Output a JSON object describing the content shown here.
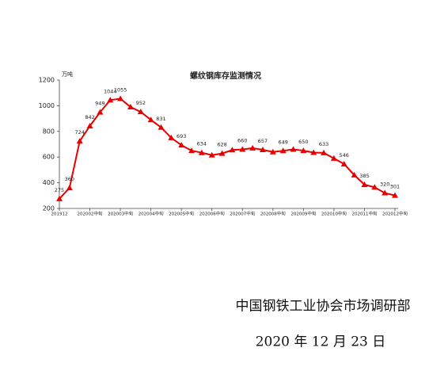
{
  "chart_data": {
    "type": "line",
    "title": "螺纹钢库存监测情况",
    "y_label": "万吨",
    "categories": [
      "201912",
      null,
      null,
      "202002中旬",
      null,
      null,
      "202003中旬",
      null,
      null,
      "202004中旬",
      null,
      null,
      "202005中旬",
      null,
      null,
      "202006中旬",
      null,
      null,
      "202007中旬",
      null,
      null,
      "202008中旬",
      null,
      null,
      "202009中旬",
      null,
      null,
      "202010中旬",
      null,
      null,
      "202011中旬",
      null,
      null,
      "202012中旬"
    ],
    "values": [
      275,
      360,
      724,
      842,
      949,
      1044,
      1055,
      990,
      952,
      890,
      831,
      750,
      693,
      650,
      634,
      615,
      628,
      655,
      660,
      670,
      657,
      640,
      649,
      660,
      650,
      635,
      633,
      590,
      546,
      460,
      385,
      365,
      320,
      301
    ],
    "value_labels": [
      "275",
      "360",
      "724",
      "842",
      "949",
      "1044",
      "1055",
      null,
      "952",
      null,
      "831",
      null,
      "693",
      null,
      "634",
      null,
      "628",
      null,
      "660",
      null,
      "657",
      null,
      "649",
      null,
      "650",
      null,
      "633",
      null,
      "546",
      null,
      "385",
      null,
      "320",
      "301"
    ],
    "color": "#e60000",
    "ylim": [
      200,
      1200
    ],
    "yticks": [
      200,
      400,
      600,
      800,
      1000,
      1200
    ]
  },
  "footer": {
    "organization": "中国钢铁工业协会市场调研部",
    "date": "2020 年 12 月 23 日"
  }
}
